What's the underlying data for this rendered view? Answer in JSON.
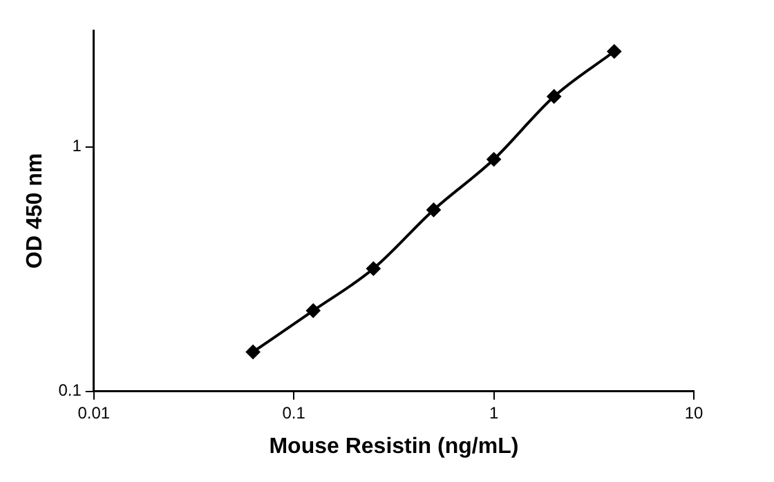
{
  "chart_data": {
    "type": "line",
    "xlabel": "Mouse Resistin (ng/mL)",
    "ylabel": "OD 450 nm",
    "log": "xy",
    "marker": "diamond",
    "line_style": "solid",
    "legend": false,
    "x": [
      0.0625,
      0.125,
      0.25,
      0.5,
      1,
      2,
      4
    ],
    "series": [
      {
        "color": "#000000",
        "values": [
          0.145,
          0.214,
          0.318,
          0.553,
          0.89,
          1.61,
          2.46
        ]
      }
    ],
    "xlim": [
      0.01,
      10
    ],
    "xticks": [
      0.01,
      0.1,
      1,
      10
    ],
    "ylim": [
      0.1,
      3
    ],
    "yticks": [
      0.1,
      1
    ]
  }
}
